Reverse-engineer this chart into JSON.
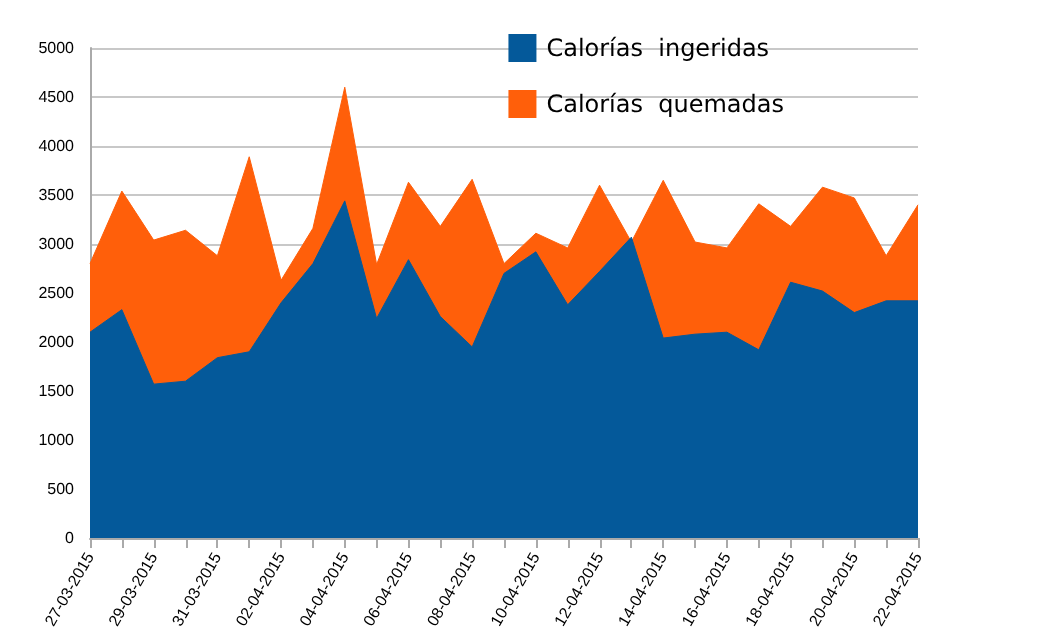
{
  "chart_data": {
    "type": "area",
    "categories": [
      "27-03-2015",
      null,
      "29-03-2015",
      null,
      "31-03-2015",
      null,
      "02-04-2015",
      null,
      "04-04-2015",
      null,
      "06-04-2015",
      null,
      "08-04-2015",
      null,
      "10-04-2015",
      null,
      "12-04-2015",
      null,
      "14-04-2015",
      null,
      "16-04-2015",
      null,
      "18-04-2015",
      null,
      "20-04-2015",
      null,
      "22-04-2015"
    ],
    "series": [
      {
        "name": "Calorías  ingeridas",
        "color": "#04599a",
        "values": [
          2100,
          2330,
          1570,
          1600,
          1840,
          1900,
          2400,
          2800,
          3440,
          2240,
          2840,
          2260,
          1950,
          2700,
          2920,
          2380,
          2720,
          3070,
          2040,
          2080,
          2100,
          1920,
          2610,
          2520,
          2300,
          2420,
          2420
        ]
      },
      {
        "name": "Calorías  quemadas",
        "color": "#ff5f0a",
        "values": [
          2800,
          3540,
          3040,
          3140,
          2880,
          3890,
          2630,
          3160,
          4600,
          2790,
          3630,
          3180,
          3660,
          2800,
          3110,
          2960,
          3600,
          3020,
          3650,
          3020,
          2960,
          3410,
          3180,
          3580,
          3470,
          2880,
          3400
        ]
      }
    ],
    "ylim": [
      0,
      5000
    ],
    "yticks": [
      0,
      500,
      1000,
      1500,
      2000,
      2500,
      3000,
      3500,
      4000,
      4500,
      5000
    ],
    "grid": "y",
    "legend": "top right"
  }
}
